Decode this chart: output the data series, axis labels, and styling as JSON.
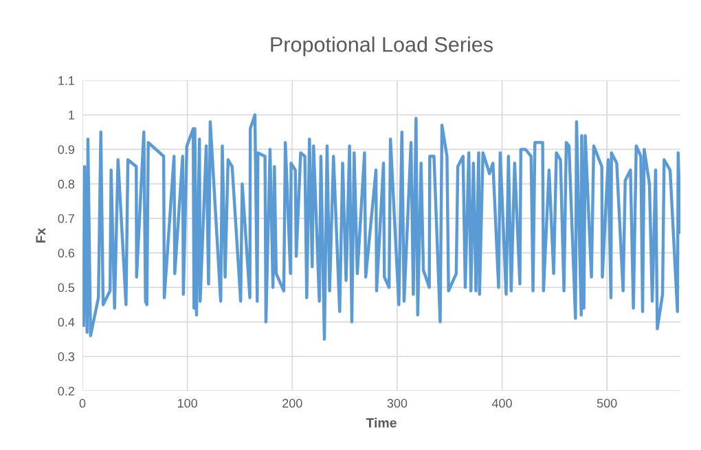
{
  "chart_data": {
    "type": "line",
    "title": "Propotional Load Series",
    "xlabel": "Time",
    "ylabel": "Fx",
    "xlim": [
      0,
      570
    ],
    "xticks": [
      0,
      100,
      200,
      300,
      400,
      500
    ],
    "ylim": [
      0.2,
      1.1
    ],
    "yticks": [
      0.2,
      0.3,
      0.4,
      0.5,
      0.6,
      0.7,
      0.8,
      0.9,
      1,
      1.1
    ],
    "grid": true,
    "marker": "none",
    "line_style": "solid",
    "series": [
      {
        "color": "#5b9bd5",
        "x": [
          1.1,
          2,
          4.4,
          5.2,
          7.7,
          15.2,
          17.5,
          19.7,
          26.3,
          27.3,
          30.6,
          33.9,
          41.5,
          43.3,
          51.3,
          51.6,
          58.5,
          60.1,
          61.4,
          62.7,
          77.4,
          78.0,
          87.3,
          88.0,
          95.5,
          96.2,
          99.5,
          105.6,
          106.3,
          107.1,
          108.7,
          111.5,
          112.2,
          118,
          120.2,
          121.8,
          131.8,
          133.3,
          136,
          138.8,
          142.7,
          150.8,
          152.3,
          159.6,
          160,
          164.4,
          166.6,
          167.2,
          174,
          174.9,
          178.8,
          181.6,
          183,
          184.7,
          191.9,
          193.4,
          198.3,
          198.9,
          202.9,
          203.8,
          208,
          212,
          213.8,
          216.4,
          219,
          220.3,
          225.8,
          227.3,
          230.6,
          233.2,
          235.6,
          239.3,
          245.2,
          248,
          251.3,
          254.6,
          256.8,
          259,
          262,
          268.9,
          270,
          279.8,
          280.4,
          287,
          287.8,
          292.3,
          293.6,
          301.6,
          304.5,
          306.6,
          313.2,
          315.4,
          318,
          319.6,
          322.8,
          325,
          330.6,
          331.1,
          335.1,
          341,
          342.7,
          347.5,
          349,
          356.3,
          357.8,
          362.8,
          364.9,
          368.3,
          370.3,
          372.7,
          375.1,
          377.7,
          378.5,
          381.8,
          388,
          391.3,
          396.7,
          398.2,
          403.9,
          406.1,
          408.7,
          412,
          417,
          417.9,
          422.3,
          427.7,
          429.5,
          431.3,
          438.7,
          439.5,
          444.8,
          449.2,
          451.8,
          455.7,
          459,
          461.2,
          463.8,
          470,
          471,
          475.5,
          475.9,
          478,
          479.3,
          485.2,
          487.4,
          495.1,
          495.6,
          501.2,
          503.8,
          504.3,
          509.3,
          515.4,
          517.4,
          522.4,
          525.2,
          527.9,
          532.3,
          534,
          535.5,
          540.5,
          543.2,
          546.4,
          548,
          553,
          554.5,
          560.2,
          567.2,
          567.9,
          570
        ],
        "values": [
          0.39,
          0.85,
          0.37,
          0.93,
          0.36,
          0.47,
          0.95,
          0.45,
          0.49,
          0.84,
          0.44,
          0.87,
          0.45,
          0.87,
          0.85,
          0.53,
          0.95,
          0.46,
          0.45,
          0.92,
          0.88,
          0.47,
          0.88,
          0.54,
          0.88,
          0.48,
          0.91,
          0.96,
          0.44,
          0.96,
          0.42,
          0.93,
          0.46,
          0.91,
          0.51,
          0.98,
          0.46,
          0.91,
          0.53,
          0.87,
          0.85,
          0.46,
          0.8,
          0.47,
          0.96,
          1.0,
          0.46,
          0.89,
          0.88,
          0.4,
          0.9,
          0.5,
          0.85,
          0.54,
          0.49,
          0.92,
          0.54,
          0.86,
          0.84,
          0.59,
          0.89,
          0.88,
          0.47,
          0.93,
          0.56,
          0.91,
          0.46,
          0.88,
          0.35,
          0.91,
          0.49,
          0.88,
          0.43,
          0.86,
          0.52,
          0.91,
          0.4,
          0.89,
          0.54,
          0.89,
          0.53,
          0.84,
          0.49,
          0.86,
          0.53,
          0.5,
          0.93,
          0.45,
          0.95,
          0.46,
          0.92,
          0.48,
          0.99,
          0.42,
          0.86,
          0.55,
          0.5,
          0.88,
          0.88,
          0.4,
          0.97,
          0.88,
          0.49,
          0.54,
          0.85,
          0.88,
          0.5,
          0.89,
          0.49,
          0.86,
          0.49,
          0.89,
          0.48,
          0.89,
          0.83,
          0.86,
          0.5,
          0.89,
          0.48,
          0.88,
          0.49,
          0.86,
          0.51,
          0.9,
          0.9,
          0.88,
          0.49,
          0.92,
          0.92,
          0.49,
          0.84,
          0.54,
          0.89,
          0.87,
          0.49,
          0.92,
          0.91,
          0.41,
          0.98,
          0.42,
          0.94,
          0.44,
          0.94,
          0.53,
          0.91,
          0.85,
          0.53,
          0.87,
          0.47,
          0.89,
          0.86,
          0.49,
          0.81,
          0.84,
          0.44,
          0.91,
          0.88,
          0.43,
          0.9,
          0.8,
          0.46,
          0.84,
          0.38,
          0.48,
          0.87,
          0.84,
          0.43,
          0.89,
          0.66
        ]
      }
    ]
  }
}
